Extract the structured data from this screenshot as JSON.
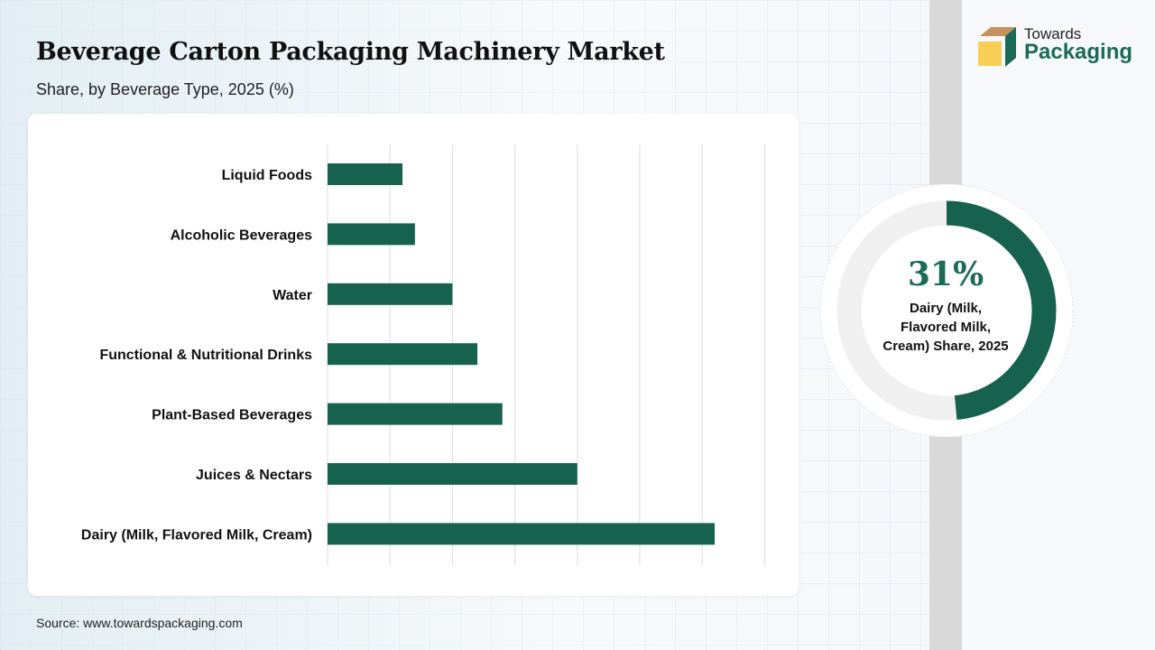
{
  "title": "Beverage Carton Packaging Machinery Market",
  "subtitle": "Share, by Beverage Type, 2025 (%)",
  "source": "Source: www.towardspackaging.com",
  "logo": {
    "line1": "Towards",
    "line2": "Packaging"
  },
  "highlight": {
    "value": "31%",
    "label_lines": [
      "Dairy (Milk,",
      "Flavored Milk,",
      "Cream) Share, 2025"
    ]
  },
  "colors": {
    "bar": "#17624f",
    "ring_bg": "#f0f0f0"
  },
  "chart_data": {
    "type": "bar",
    "orientation": "horizontal",
    "title": "Beverage Carton Packaging Machinery Market",
    "xlabel": "",
    "ylabel": "",
    "categories": [
      "Liquid Foods",
      "Alcoholic Beverages",
      "Water",
      "Functional & Nutritional Drinks",
      "Plant-Based Beverages",
      "Juices & Nectars",
      "Dairy (Milk, Flavored Milk, Cream)"
    ],
    "values": [
      6,
      7,
      10,
      12,
      14,
      20,
      31
    ],
    "xlim": [
      0,
      35
    ],
    "grid": true,
    "gridStep": 5
  }
}
